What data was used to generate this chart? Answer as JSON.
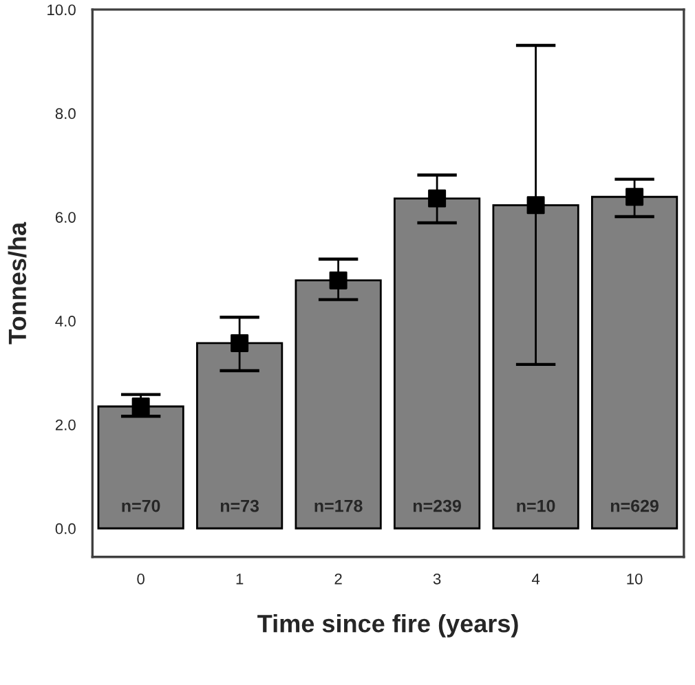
{
  "chart_data": {
    "type": "bar",
    "xlabel": "Time since fire (years)",
    "ylabel": "Tonnes/ha",
    "categories": [
      "0",
      "1",
      "2",
      "3",
      "4",
      "10"
    ],
    "color": "#808080",
    "values": [
      2.35,
      3.57,
      4.78,
      6.36,
      6.23,
      6.39
    ],
    "errors": [
      [
        2.16,
        2.58
      ],
      [
        3.04,
        4.07
      ],
      [
        4.41,
        5.19
      ],
      [
        5.89,
        6.81
      ],
      [
        3.16,
        9.31
      ],
      [
        6.01,
        6.73
      ]
    ],
    "series": [
      {
        "type": "scatter",
        "color": "#000000",
        "marker": "square",
        "x": [
          "0",
          "1",
          "2",
          "3",
          "4",
          "10"
        ],
        "values": [
          2.35,
          3.57,
          4.78,
          6.36,
          6.23,
          6.39
        ]
      }
    ],
    "ylim": [
      -0.55,
      10
    ],
    "yticks": [
      {
        "value": 0,
        "label": "0.0"
      },
      {
        "value": 2,
        "label": "2.0"
      },
      {
        "value": 4,
        "label": "4.0"
      },
      {
        "value": 6,
        "label": "6.0"
      },
      {
        "value": 8,
        "label": "8.0"
      },
      {
        "value": 10,
        "label": "10.0"
      }
    ],
    "annotations": [
      "n=70",
      "n=73",
      "n=178",
      "n=239",
      "n=10",
      "n=629"
    ],
    "grid": false,
    "legend": false
  }
}
